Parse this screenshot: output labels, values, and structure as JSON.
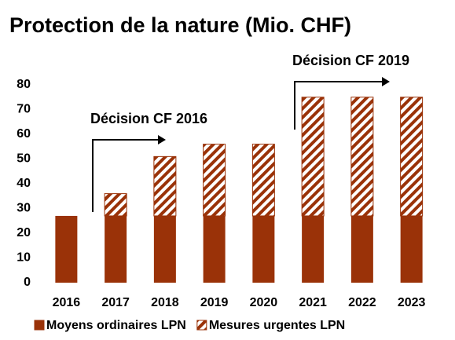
{
  "chart_data": {
    "type": "stacked_bar",
    "title": "Protection de la nature (Mio. CHF)",
    "categories": [
      "2016",
      "2017",
      "2018",
      "2019",
      "2020",
      "2021",
      "2022",
      "2023"
    ],
    "series": [
      {
        "name": "Moyens ordinaires LPN",
        "color": "#9a3208",
        "values": [
          27,
          27,
          27,
          27,
          27,
          27,
          27,
          27
        ]
      },
      {
        "name": "Mesures urgentes LPN",
        "color": "#9a3208",
        "pattern": "hatch",
        "values": [
          0,
          9,
          24,
          29,
          29,
          48,
          48,
          48
        ]
      }
    ],
    "ylim": [
      0,
      80
    ],
    "yticks": [
      0,
      10,
      20,
      30,
      40,
      50,
      60,
      70,
      80
    ],
    "grid": false,
    "annotations": [
      "Décision CF 2016",
      "Décision CF 2019"
    ],
    "legend": "bottom"
  }
}
